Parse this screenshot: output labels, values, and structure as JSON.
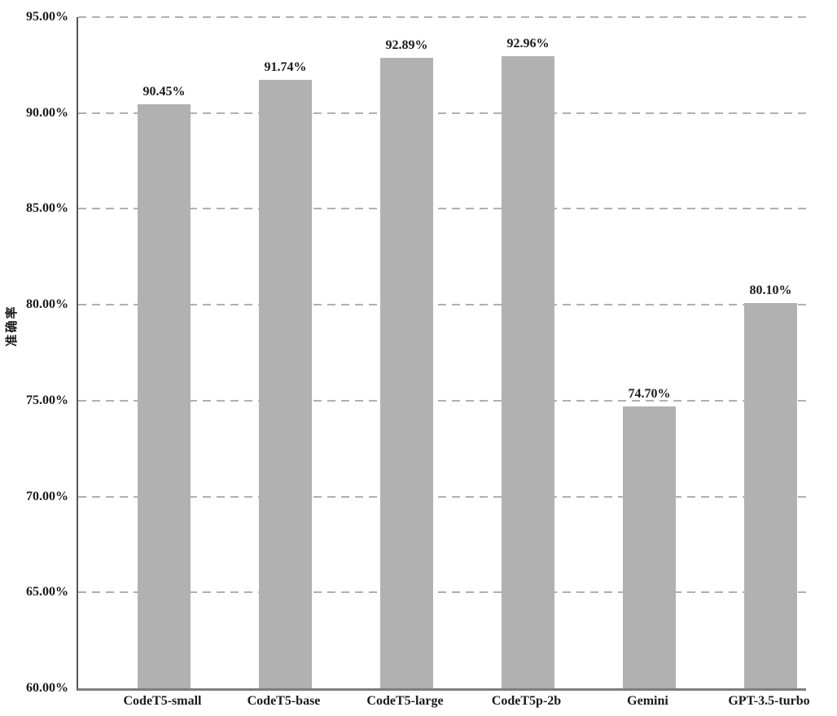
{
  "chart_data": {
    "type": "bar",
    "title": "",
    "xlabel": "",
    "ylabel": "准确率",
    "categories": [
      "CodeT5-small",
      "CodeT5-base",
      "CodeT5-large",
      "CodeT5p-2b",
      "Gemini",
      "GPT-3.5-turbo"
    ],
    "values": [
      90.45,
      91.74,
      92.89,
      92.96,
      74.7,
      80.1
    ],
    "value_labels": [
      "90.45%",
      "91.74%",
      "92.89%",
      "92.96%",
      "74.70%",
      "80.10%"
    ],
    "ylim": [
      60,
      95
    ],
    "ytick_step": 5,
    "ytick_labels": [
      "60.00%",
      "65.00%",
      "70.00%",
      "75.00%",
      "80.00%",
      "85.00%",
      "90.00%",
      "95.00%"
    ],
    "grid": "horizontal-dashed",
    "legend": "none",
    "bar_color": "#b1b1b1",
    "gridline_color": "#b0b0b0",
    "axis_color": "#7f7f7f",
    "text_color": "#1a1a1a"
  }
}
